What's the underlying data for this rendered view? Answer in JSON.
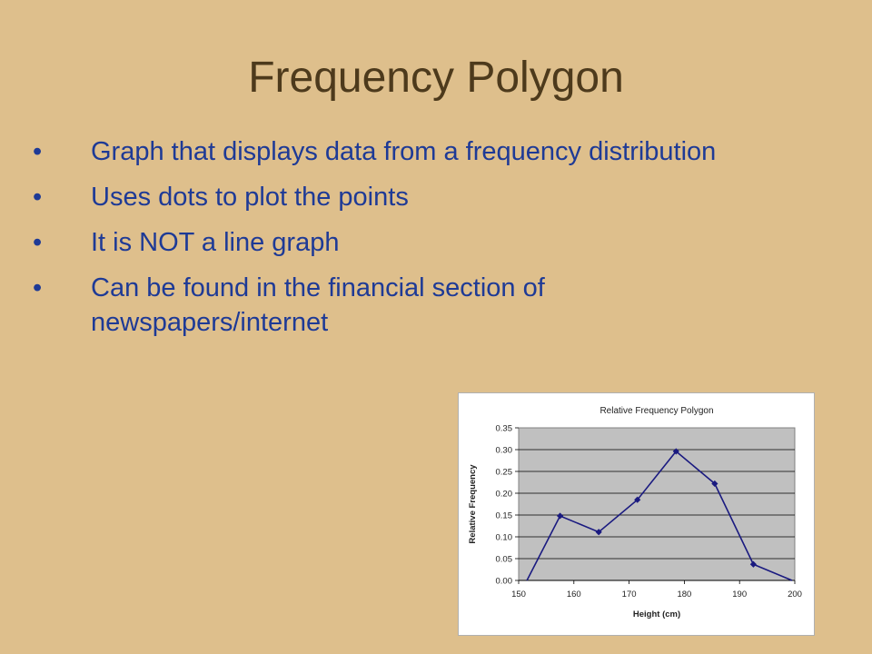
{
  "slide": {
    "title": "Frequency Polygon",
    "bullets": [
      "Graph that displays data from a frequency distribution",
      "Uses dots to plot the points",
      "It is NOT a line graph",
      "Can be found in the financial section of newspapers/internet"
    ],
    "bullet_symbol": "•"
  },
  "colors": {
    "background": "#debf8c",
    "title": "#4d3a1c",
    "bullet_text": "#1e3a96",
    "plot_area": "#c0c0c0",
    "series_line": "#1a1a80"
  },
  "chart_data": {
    "type": "line",
    "title": "Relative Frequency Polygon",
    "xlabel": "Height (cm)",
    "ylabel": "Relative Frequency",
    "x_ticks": [
      "150",
      "160",
      "170",
      "180",
      "190",
      "200"
    ],
    "y_ticks": [
      "0.00",
      "0.05",
      "0.10",
      "0.15",
      "0.20",
      "0.25",
      "0.30",
      "0.35"
    ],
    "xlim": [
      150,
      200
    ],
    "ylim": [
      0,
      0.35
    ],
    "grid": true,
    "series": [
      {
        "x": [
          151.5,
          157.5,
          164.5,
          171.5,
          178.5,
          185.5,
          192.5,
          199.5
        ],
        "y": [
          0,
          0.148,
          0.111,
          0.185,
          0.296,
          0.222,
          0.037,
          0
        ]
      }
    ]
  }
}
